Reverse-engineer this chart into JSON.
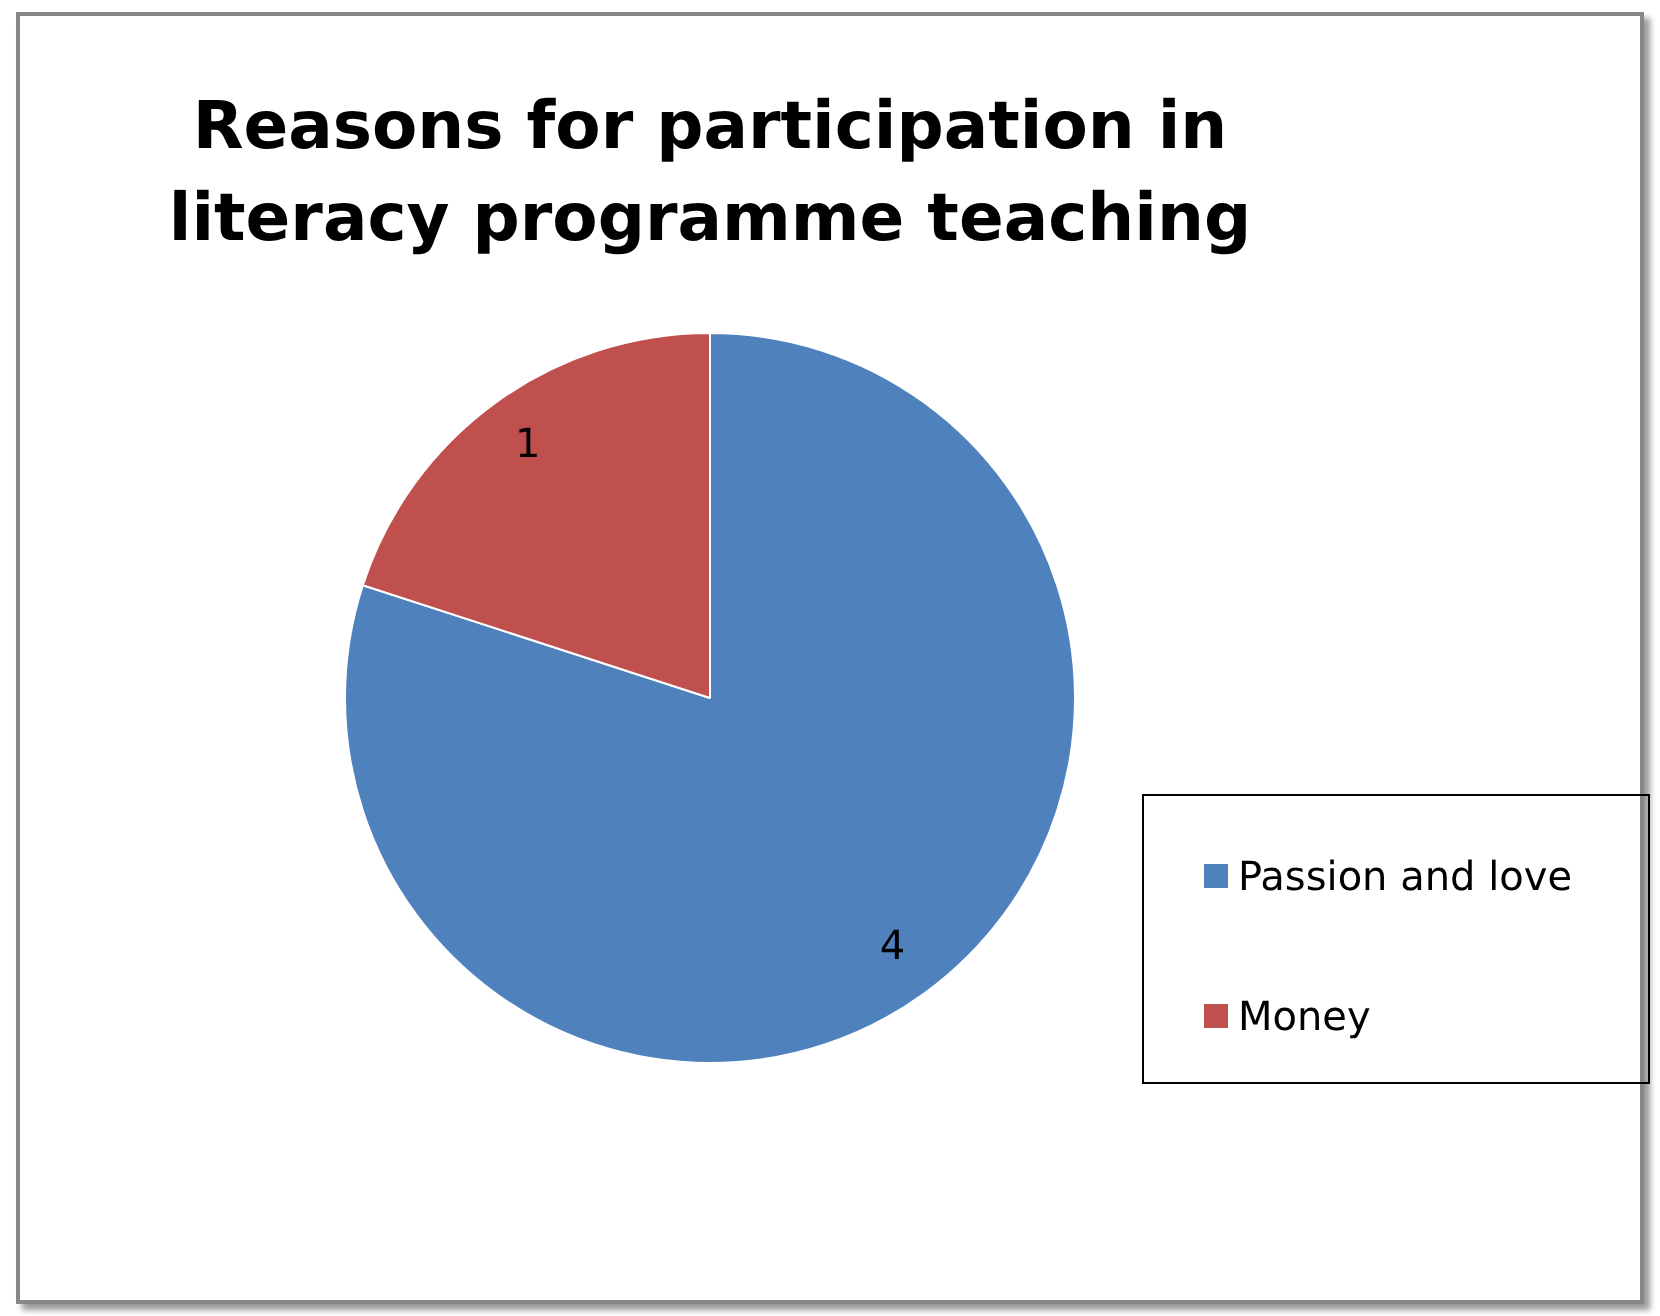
{
  "chart_data": {
    "type": "pie",
    "title": "Reasons for participation in literacy programme teaching",
    "categories": [
      "Passion and love",
      "Money"
    ],
    "values": [
      4,
      1
    ],
    "colors": [
      "#4f81bd",
      "#c0504d"
    ],
    "data_labels": true,
    "legend": "right"
  }
}
